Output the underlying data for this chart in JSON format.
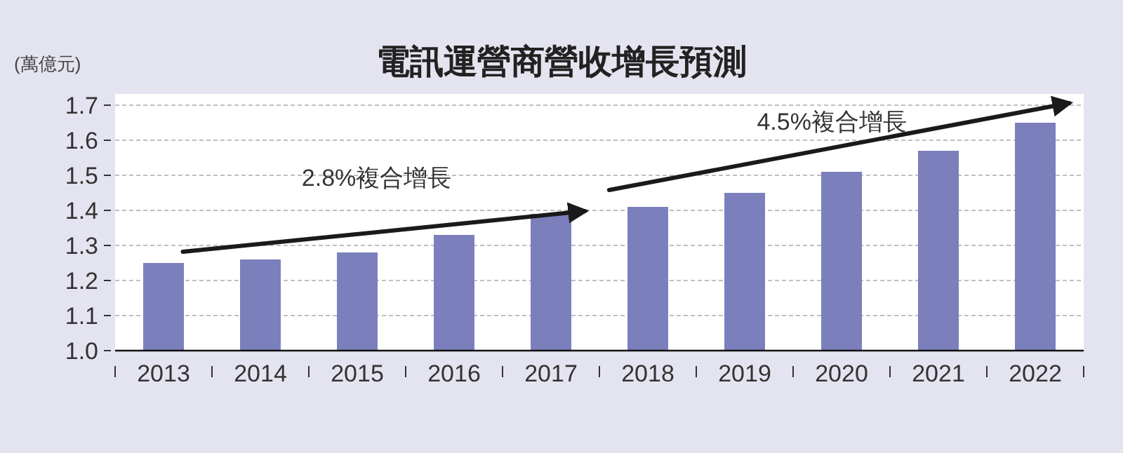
{
  "chart_data": {
    "type": "bar",
    "title": "電訊運營商營收增長預測",
    "ylabel": "(萬億元)",
    "categories": [
      "2013",
      "2014",
      "2015",
      "2016",
      "2017",
      "2018",
      "2019",
      "2020",
      "2021",
      "2022"
    ],
    "series": [
      {
        "color": "#7b7fbc",
        "values": [
          1.25,
          1.26,
          1.28,
          1.33,
          1.39,
          1.41,
          1.45,
          1.51,
          1.57,
          1.65
        ]
      }
    ],
    "ylim": [
      1.0,
      1.7
    ],
    "yticks": [
      {
        "value": 1,
        "label": "1.0"
      },
      1.1,
      1.2,
      1.3,
      1.4,
      1.5,
      1.6,
      1.7
    ],
    "grid": "y",
    "annotations": [
      "2.8%複合增長",
      "4.5%複合增長"
    ]
  }
}
